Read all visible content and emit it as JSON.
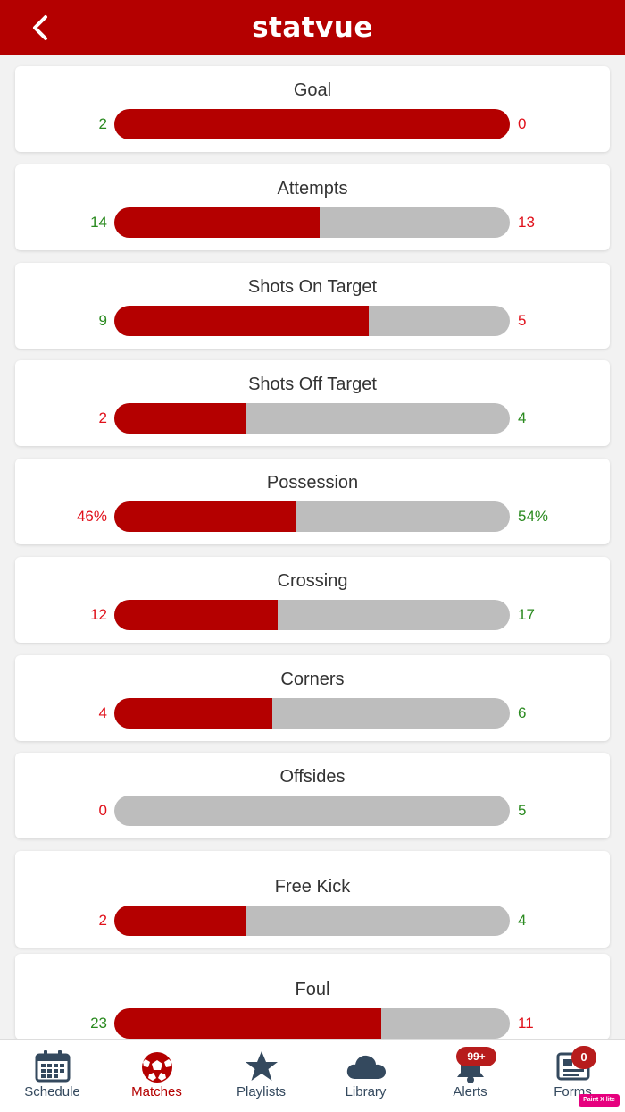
{
  "header": {
    "logo_text": "statvue"
  },
  "colors": {
    "brand": "#b40000",
    "bar_bg": "#bdbdbd",
    "win": "#2a8a1f",
    "lose": "#e0101a"
  },
  "stats": [
    {
      "label": "Goal",
      "left": "2",
      "right": "0",
      "fill": 1.0,
      "left_class": "win",
      "right_class": "lose"
    },
    {
      "label": "Attempts",
      "left": "14",
      "right": "13",
      "fill": 0.519,
      "left_class": "win",
      "right_class": "lose"
    },
    {
      "label": "Shots On Target",
      "left": "9",
      "right": "5",
      "fill": 0.643,
      "left_class": "win",
      "right_class": "lose"
    },
    {
      "label": "Shots Off Target",
      "left": "2",
      "right": "4",
      "fill": 0.333,
      "left_class": "lose",
      "right_class": "win"
    },
    {
      "label": "Possession",
      "left": "46%",
      "right": "54%",
      "fill": 0.46,
      "left_class": "lose",
      "right_class": "win"
    },
    {
      "label": "Crossing",
      "left": "12",
      "right": "17",
      "fill": 0.414,
      "left_class": "lose",
      "right_class": "win"
    },
    {
      "label": "Corners",
      "left": "4",
      "right": "6",
      "fill": 0.4,
      "left_class": "lose",
      "right_class": "win"
    },
    {
      "label": "Offsides",
      "left": "0",
      "right": "5",
      "fill": 0.0,
      "left_class": "lose",
      "right_class": "win"
    },
    {
      "label": "Free Kick",
      "left": "2",
      "right": "4",
      "fill": 0.333,
      "left_class": "lose",
      "right_class": "win"
    },
    {
      "label": "Foul",
      "left": "23",
      "right": "11",
      "fill": 0.676,
      "left_class": "win",
      "right_class": "lose"
    }
  ],
  "tabs": [
    {
      "label": "Schedule",
      "icon": "calendar-icon"
    },
    {
      "label": "Matches",
      "icon": "soccer-ball-icon",
      "active": true
    },
    {
      "label": "Playlists",
      "icon": "star-icon"
    },
    {
      "label": "Library",
      "icon": "cloud-icon"
    },
    {
      "label": "Alerts",
      "icon": "bell-icon",
      "badge": "99+"
    },
    {
      "label": "Forms",
      "icon": "form-icon",
      "badge": "0"
    }
  ],
  "watermark": "Paint X lite"
}
